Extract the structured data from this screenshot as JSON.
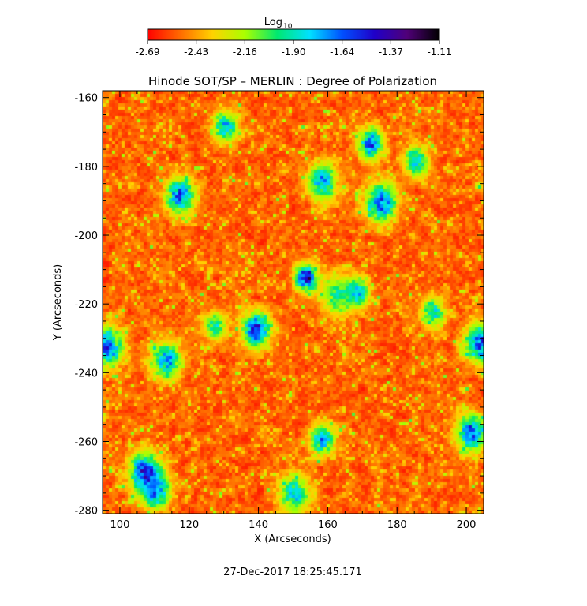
{
  "chart_data": {
    "type": "heatmap",
    "title": "Hinode SOT/SP – MERLIN : Degree of Polarization",
    "xlabel": "X (Arcseconds)",
    "ylabel": "Y (Arcseconds)",
    "xlim": [
      95,
      205
    ],
    "ylim": [
      -281,
      -158
    ],
    "x_ticks": [
      "100",
      "120",
      "140",
      "160",
      "180",
      "200"
    ],
    "x_tick_values": [
      100,
      120,
      140,
      160,
      180,
      200
    ],
    "y_ticks": [
      "-160",
      "-180",
      "-200",
      "-220",
      "-240",
      "-260",
      "-280"
    ],
    "y_tick_values": [
      -160,
      -180,
      -200,
      -220,
      -240,
      -260,
      -280
    ],
    "colorbar": {
      "label_base": "Log",
      "label_sub": "10",
      "ticks": [
        "-2.69",
        "-2.43",
        "-2.16",
        "-1.90",
        "-1.64",
        "-1.37",
        "-1.11"
      ],
      "range": [
        -2.69,
        -1.11
      ],
      "colors": [
        "#ff0000",
        "#ff6a00",
        "#ffd200",
        "#aaff00",
        "#00e870",
        "#00e0ff",
        "#0050ff",
        "#2000c8",
        "#500078",
        "#000000"
      ]
    },
    "grid": false,
    "background_value": -2.55,
    "features": [
      {
        "x": 153.5,
        "y": -212,
        "value": -1.3
      },
      {
        "x": 162,
        "y": -217,
        "value": -1.95
      },
      {
        "x": 168,
        "y": -216,
        "value": -1.7
      },
      {
        "x": 139,
        "y": -227,
        "value": -1.5
      },
      {
        "x": 107,
        "y": -269,
        "value": -1.45
      },
      {
        "x": 175,
        "y": -190,
        "value": -1.55
      },
      {
        "x": 172,
        "y": -173,
        "value": -1.6
      },
      {
        "x": 117,
        "y": -188,
        "value": -1.6
      },
      {
        "x": 113,
        "y": -236,
        "value": -1.7
      },
      {
        "x": 96,
        "y": -232,
        "value": -1.6
      },
      {
        "x": 204,
        "y": -231,
        "value": -1.55
      },
      {
        "x": 201,
        "y": -257,
        "value": -1.55
      },
      {
        "x": 185,
        "y": -178,
        "value": -1.8
      },
      {
        "x": 110,
        "y": -274,
        "value": -1.6
      },
      {
        "x": 158,
        "y": -259,
        "value": -1.7
      },
      {
        "x": 130,
        "y": -168,
        "value": -1.75
      },
      {
        "x": 158,
        "y": -184,
        "value": -1.7
      },
      {
        "x": 190,
        "y": -222,
        "value": -1.8
      },
      {
        "x": 150,
        "y": -275,
        "value": -1.8
      },
      {
        "x": 127,
        "y": -226,
        "value": -1.9
      }
    ]
  },
  "footer": {
    "timestamp": "27-Dec-2017 18:25:45.171"
  }
}
